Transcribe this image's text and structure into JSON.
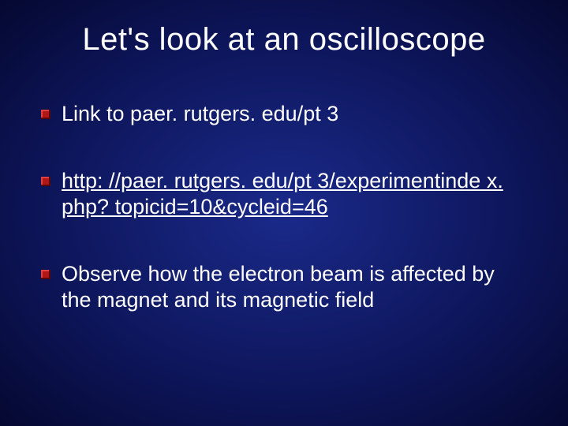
{
  "slide": {
    "title": "Let's look at an oscilloscope",
    "bullets": [
      {
        "text": "Link to paer. rutgers. edu/pt 3",
        "is_link": false
      },
      {
        "text": "http: //paer. rutgers. edu/pt 3/experimentinde x. php? topicid=10&cycleid=46",
        "is_link": true
      },
      {
        "text": "Observe how the electron beam is affected by the magnet and its magnetic field",
        "is_link": false
      }
    ],
    "styling": {
      "background_gradient": {
        "inner": "#1a2a8a",
        "mid": "#0d1559",
        "outer": "#050830"
      },
      "title_color": "#ffffff",
      "title_fontsize": 40,
      "body_color": "#ffffff",
      "body_fontsize": 27,
      "bullet_marker_color": "#b01818",
      "bullet_marker_size": 12,
      "font_family": "Arial",
      "slide_width": 720,
      "slide_height": 540
    }
  }
}
